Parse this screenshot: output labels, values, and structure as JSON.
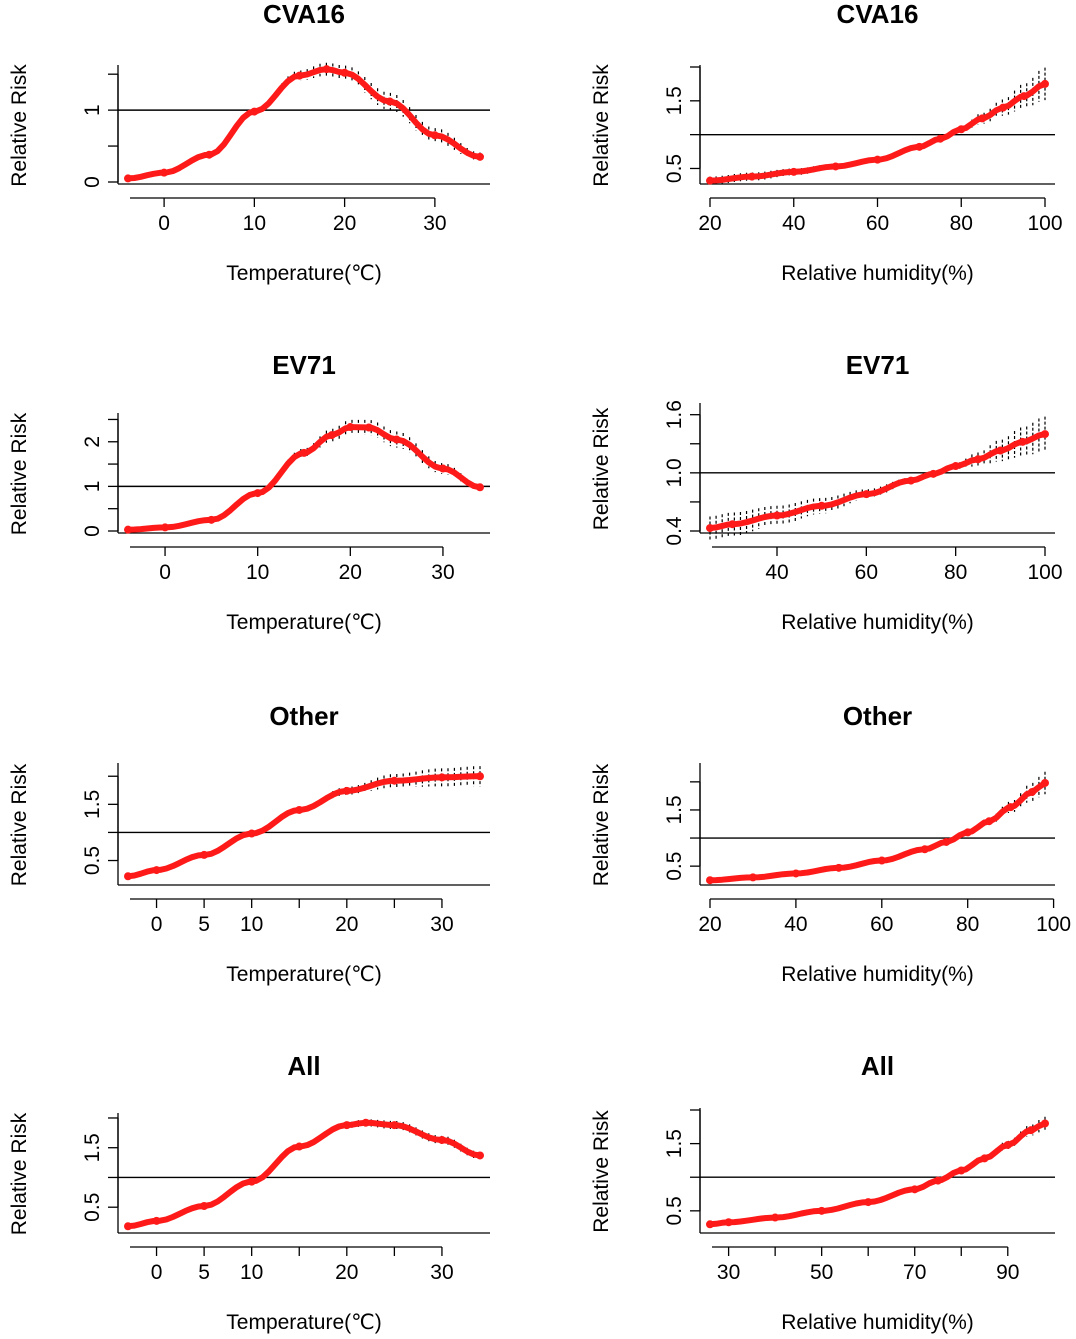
{
  "figure": {
    "y_label": "Relative Risk",
    "temperature_label": "Temperature(℃)",
    "humidity_label": "Relative humidity(%)",
    "colors": {
      "curve": "#ff1a1a",
      "ci": "#000000",
      "reference": "#000000",
      "axis": "#000000"
    }
  },
  "chart_data": [
    {
      "id": "cva16-temp",
      "type": "line",
      "title": "CVA16",
      "xlabel": "Temperature(℃)",
      "ylabel": "Relative Risk",
      "xlim": [
        -4,
        35
      ],
      "ylim": [
        0.0,
        1.6
      ],
      "reference_line": 1.0,
      "x_ticks": [
        0,
        10,
        20,
        30
      ],
      "x_minor_ticks": [],
      "y_ticks": [
        0.0,
        1.0
      ],
      "y_minor_ticks": [
        0.5,
        1.5
      ],
      "x": [
        -4,
        0,
        5,
        10,
        15,
        18,
        20,
        25,
        30,
        35
      ],
      "y": [
        0.05,
        0.13,
        0.38,
        0.98,
        1.48,
        1.57,
        1.52,
        1.12,
        0.65,
        0.35
      ],
      "ci_halfwidth": [
        0.02,
        0.03,
        0.04,
        0.04,
        0.07,
        0.09,
        0.1,
        0.12,
        0.1,
        0.06
      ]
    },
    {
      "id": "cva16-hum",
      "type": "line",
      "title": "CVA16",
      "xlabel": "Relative humidity(%)",
      "ylabel": "Relative Risk",
      "xlim": [
        20,
        100
      ],
      "ylim": [
        0.3,
        2.0
      ],
      "reference_line": 1.0,
      "x_ticks": [
        20,
        40,
        60,
        80,
        100
      ],
      "x_minor_ticks": [],
      "y_ticks": [
        0.5,
        1.5
      ],
      "y_minor_ticks": [
        1.0,
        2.0
      ],
      "x": [
        20,
        30,
        40,
        50,
        60,
        70,
        75,
        80,
        85,
        90,
        95,
        100
      ],
      "y": [
        0.32,
        0.38,
        0.45,
        0.53,
        0.63,
        0.82,
        0.94,
        1.08,
        1.24,
        1.4,
        1.57,
        1.75
      ],
      "ci_halfwidth": [
        0.06,
        0.06,
        0.05,
        0.04,
        0.03,
        0.02,
        0.02,
        0.04,
        0.08,
        0.12,
        0.18,
        0.24
      ]
    },
    {
      "id": "ev71-temp",
      "type": "line",
      "title": "EV71",
      "xlabel": "Temperature(℃)",
      "ylabel": "Relative Risk",
      "xlim": [
        -4,
        34
      ],
      "ylim": [
        0.0,
        2.6
      ],
      "reference_line": 1.0,
      "x_ticks": [
        0,
        10,
        20,
        30
      ],
      "x_minor_ticks": [],
      "y_ticks": [
        0.0,
        1.0,
        2.0
      ],
      "y_minor_ticks": [
        0.5,
        1.5,
        2.5
      ],
      "x": [
        -4,
        0,
        5,
        10,
        15,
        18,
        20,
        22,
        25,
        30,
        34
      ],
      "y": [
        0.03,
        0.08,
        0.25,
        0.85,
        1.75,
        2.15,
        2.33,
        2.32,
        2.05,
        1.4,
        0.98
      ],
      "ci_halfwidth": [
        0.02,
        0.03,
        0.04,
        0.06,
        0.1,
        0.14,
        0.16,
        0.17,
        0.18,
        0.12,
        0.06
      ]
    },
    {
      "id": "ev71-hum",
      "type": "line",
      "title": "EV71",
      "xlabel": "Relative humidity(%)",
      "ylabel": "Relative Risk",
      "xlim": [
        25,
        100
      ],
      "ylim": [
        0.4,
        1.7
      ],
      "reference_line": 1.0,
      "x_ticks": [
        40,
        60,
        80,
        100
      ],
      "x_minor_ticks": [],
      "y_ticks": [
        0.4,
        1.0,
        1.6
      ],
      "y_minor_ticks": [
        0.7,
        1.3
      ],
      "x": [
        25,
        30,
        40,
        50,
        60,
        70,
        75,
        80,
        85,
        90,
        95,
        100
      ],
      "y": [
        0.43,
        0.47,
        0.56,
        0.66,
        0.78,
        0.92,
        0.99,
        1.07,
        1.14,
        1.23,
        1.32,
        1.4
      ],
      "ci_halfwidth": [
        0.12,
        0.12,
        0.1,
        0.08,
        0.05,
        0.03,
        0.01,
        0.03,
        0.07,
        0.11,
        0.15,
        0.18
      ]
    },
    {
      "id": "other-temp",
      "type": "line",
      "title": "Other",
      "xlabel": "Temperature(℃)",
      "ylabel": "Relative Risk",
      "xlim": [
        -3,
        34
      ],
      "ylim": [
        0.1,
        2.2
      ],
      "reference_line": 1.0,
      "x_ticks": [
        0,
        5,
        10,
        20,
        30
      ],
      "x_minor_ticks": [
        15,
        25
      ],
      "y_ticks": [
        0.5,
        1.5
      ],
      "y_minor_ticks": [
        1.0,
        2.0
      ],
      "x": [
        -3,
        0,
        5,
        10,
        15,
        20,
        25,
        30,
        34
      ],
      "y": [
        0.22,
        0.33,
        0.6,
        0.98,
        1.4,
        1.74,
        1.92,
        1.98,
        2.0
      ],
      "ci_halfwidth": [
        0.02,
        0.02,
        0.02,
        0.02,
        0.03,
        0.07,
        0.12,
        0.16,
        0.18
      ]
    },
    {
      "id": "other-hum",
      "type": "line",
      "title": "Other",
      "xlabel": "Relative humidity(%)",
      "ylabel": "Relative Risk",
      "xlim": [
        20,
        98
      ],
      "ylim": [
        0.2,
        2.3
      ],
      "reference_line": 1.0,
      "x_ticks": [
        20,
        40,
        60,
        80,
        100
      ],
      "x_minor_ticks": [],
      "y_ticks": [
        0.5,
        1.5
      ],
      "y_minor_ticks": [
        1.0,
        2.0
      ],
      "x": [
        20,
        30,
        40,
        50,
        60,
        70,
        75,
        80,
        85,
        90,
        95,
        98
      ],
      "y": [
        0.25,
        0.3,
        0.37,
        0.47,
        0.6,
        0.8,
        0.93,
        1.1,
        1.3,
        1.55,
        1.82,
        1.98
      ],
      "ci_halfwidth": [
        0.03,
        0.03,
        0.02,
        0.02,
        0.02,
        0.02,
        0.02,
        0.03,
        0.06,
        0.1,
        0.16,
        0.2
      ]
    },
    {
      "id": "all-temp",
      "type": "line",
      "title": "All",
      "xlabel": "Temperature(℃)",
      "ylabel": "Relative Risk",
      "xlim": [
        -3,
        34
      ],
      "ylim": [
        0.1,
        2.05
      ],
      "reference_line": 1.0,
      "x_ticks": [
        0,
        5,
        10,
        20,
        30
      ],
      "x_minor_ticks": [
        15,
        25
      ],
      "y_ticks": [
        0.5,
        1.5
      ],
      "y_minor_ticks": [
        1.0,
        2.0
      ],
      "x": [
        -3,
        0,
        5,
        10,
        15,
        20,
        22,
        25,
        30,
        34
      ],
      "y": [
        0.18,
        0.27,
        0.52,
        0.93,
        1.52,
        1.88,
        1.92,
        1.88,
        1.63,
        1.37
      ],
      "ci_halfwidth": [
        0.02,
        0.02,
        0.02,
        0.02,
        0.03,
        0.05,
        0.06,
        0.07,
        0.07,
        0.06
      ]
    },
    {
      "id": "all-hum",
      "type": "line",
      "title": "All",
      "xlabel": "Relative humidity(%)",
      "ylabel": "Relative Risk",
      "xlim": [
        26,
        98
      ],
      "ylim": [
        0.2,
        2.0
      ],
      "reference_line": 1.0,
      "x_ticks": [
        30,
        50,
        70,
        90
      ],
      "x_minor_ticks": [
        40,
        60,
        80
      ],
      "y_ticks": [
        0.5,
        1.5
      ],
      "y_minor_ticks": [
        1.0,
        2.0
      ],
      "x": [
        26,
        30,
        40,
        50,
        60,
        70,
        75,
        80,
        85,
        90,
        95,
        98
      ],
      "y": [
        0.3,
        0.33,
        0.4,
        0.5,
        0.63,
        0.82,
        0.95,
        1.1,
        1.28,
        1.48,
        1.7,
        1.8
      ],
      "ci_halfwidth": [
        0.02,
        0.02,
        0.02,
        0.02,
        0.02,
        0.02,
        0.02,
        0.03,
        0.04,
        0.06,
        0.08,
        0.1
      ]
    }
  ]
}
